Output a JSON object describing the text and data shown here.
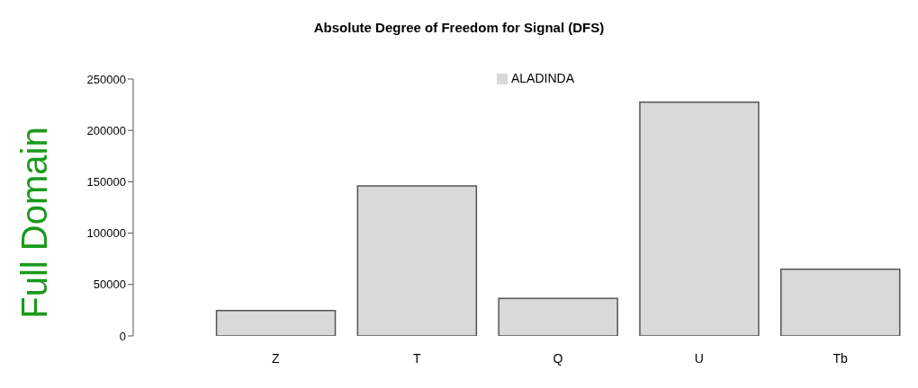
{
  "chart_data": {
    "type": "bar",
    "title": "Absolute Degree of Freedom for Signal (DFS)",
    "ylabel": "Full Domain",
    "categories": [
      "Z",
      "T",
      "Q",
      "U",
      "Tb"
    ],
    "series": [
      {
        "name": "ALADINDA",
        "color": "#d9d9d9",
        "values": [
          24600,
          146000,
          36500,
          227500,
          65000
        ]
      }
    ],
    "ylim": [
      0,
      250000
    ],
    "yticks": [
      0,
      50000,
      100000,
      150000,
      200000,
      250000
    ],
    "legend": "top"
  }
}
